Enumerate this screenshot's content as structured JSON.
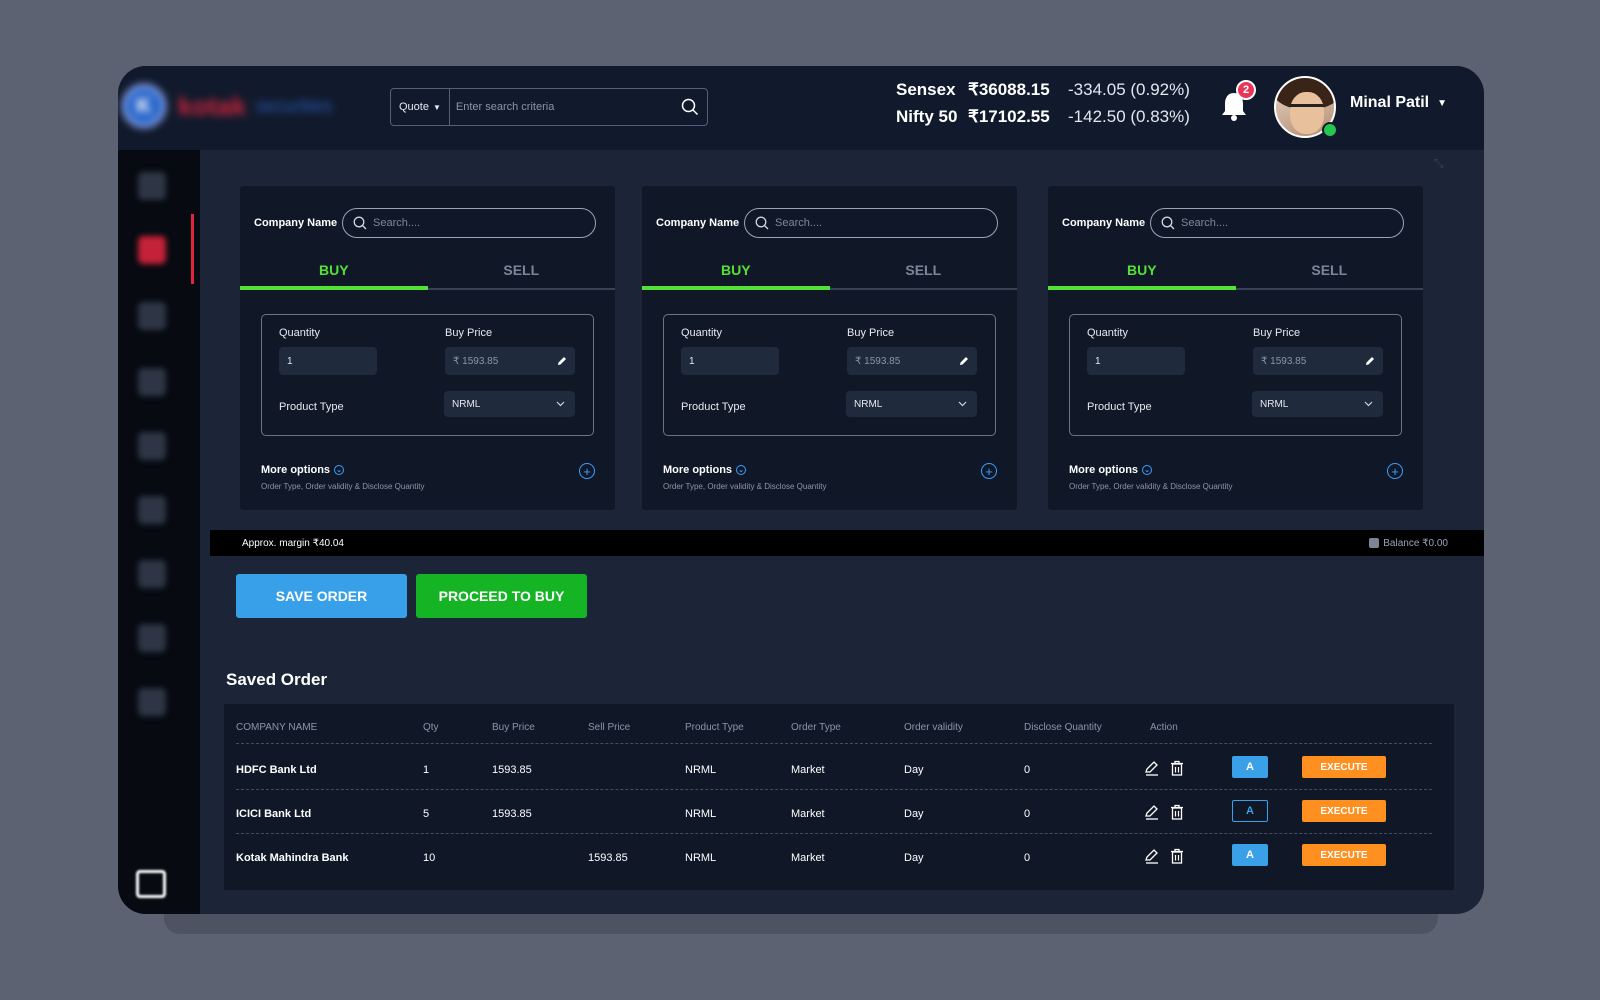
{
  "header": {
    "logo": {
      "mark": "K",
      "word": "kotak",
      "sub": "securities"
    },
    "search": {
      "dropdown": "Quote",
      "placeholder": "Enter search criteria"
    },
    "indices": [
      {
        "name": "Sensex",
        "value": "₹36088.15",
        "change": "-334.05 (0.92%)"
      },
      {
        "name": "Nifty 50",
        "value": "₹17102.55",
        "change": "-142.50 (0.83%)"
      }
    ],
    "notifications": "2",
    "user": "Minal Patil"
  },
  "sidebar": {
    "icons": [
      "dashboard-icon",
      "orders-icon",
      "portfolio-icon",
      "reports-icon",
      "funds-icon",
      "grid-icon",
      "tools-icon",
      "shield-icon",
      "settings-icon",
      "logout-icon"
    ]
  },
  "cards": [
    {
      "company_label": "Company Name",
      "search_placeholder": "Search....",
      "tabs": [
        "BUY",
        "SELL"
      ],
      "quantity_label": "Quantity",
      "quantity": "1",
      "price_label": "Buy Price",
      "price": "₹ 1593.85",
      "product_label": "Product Type",
      "product": "NRML",
      "more_title": "More options",
      "more_sub": "Order Type, Order validity & Disclose Quantity"
    },
    {
      "company_label": "Company Name",
      "search_placeholder": "Search....",
      "tabs": [
        "BUY",
        "SELL"
      ],
      "quantity_label": "Quantity",
      "quantity": "1",
      "price_label": "Buy Price",
      "price": "₹ 1593.85",
      "product_label": "Product Type",
      "product": "NRML",
      "more_title": "More options",
      "more_sub": "Order Type, Order validity & Disclose Quantity"
    },
    {
      "company_label": "Company Name",
      "search_placeholder": "Search....",
      "tabs": [
        "BUY",
        "SELL"
      ],
      "quantity_label": "Quantity",
      "quantity": "1",
      "price_label": "Buy Price",
      "price": "₹ 1593.85",
      "product_label": "Product Type",
      "product": "NRML",
      "more_title": "More options",
      "more_sub": "Order Type, Order validity & Disclose Quantity"
    }
  ],
  "margin": {
    "approx": "Approx. margin ₹40.04",
    "balance": "Balance ₹0.00"
  },
  "actions": {
    "save": "SAVE ORDER",
    "buy": "PROCEED TO BUY"
  },
  "saved": {
    "title": "Saved Order",
    "columns": [
      "COMPANY NAME",
      "Qty",
      "Buy Price",
      "Sell Price",
      "Product Type",
      "Order Type",
      "Order validity",
      "Disclose Quantity",
      "Action"
    ],
    "rows": [
      {
        "company": "HDFC Bank Ltd",
        "qty": "1",
        "buy": "1593.85",
        "sell": "",
        "product": "NRML",
        "order_type": "Market",
        "validity": "Day",
        "disclose": "0",
        "a": "A",
        "execute": "EXECUTE"
      },
      {
        "company": "ICICI Bank Ltd",
        "qty": "5",
        "buy": "1593.85",
        "sell": "",
        "product": "NRML",
        "order_type": "Market",
        "validity": "Day",
        "disclose": "0",
        "a": "A",
        "execute": "EXECUTE"
      },
      {
        "company": "Kotak Mahindra Bank",
        "qty": "10",
        "buy": "",
        "sell": "1593.85",
        "product": "NRML",
        "order_type": "Market",
        "validity": "Day",
        "disclose": "0",
        "a": "A",
        "execute": "EXECUTE"
      }
    ]
  },
  "colors": {
    "buy_green": "#52e135",
    "accent_blue": "#38a0e8",
    "execute_orange": "#ff8f1f",
    "alert_red": "#e8365a"
  }
}
